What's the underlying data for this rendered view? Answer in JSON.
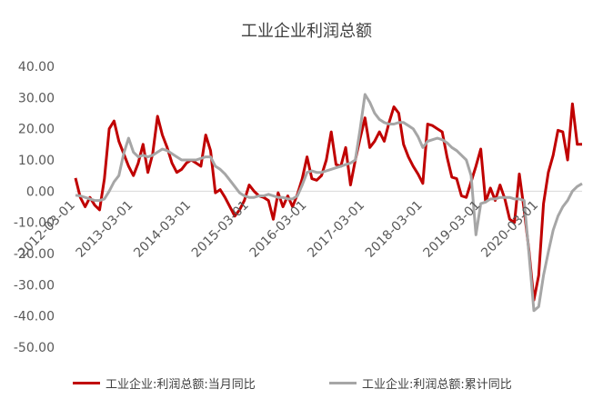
{
  "chart_data": {
    "type": "line",
    "title": "工业企业利润总额",
    "y_ticks": [
      "40.00",
      "30.00",
      "20.00",
      "10.00",
      "0.00",
      "-10.00",
      "-20.00",
      "-30.00",
      "-40.00",
      "-50.00"
    ],
    "ylim": [
      -50,
      40
    ],
    "x_ticks": [
      "2012-03-01",
      "2013-03-01",
      "2014-03-01",
      "2015-03-01",
      "2016-03-01",
      "2017-03-01",
      "2018-03-01",
      "2019-03-01",
      "2020-03-01"
    ],
    "x_start": "2012-03",
    "x_end": "2020-12",
    "legend_position": "bottom",
    "grid": false,
    "series": [
      {
        "name": "工业企业:利润总额:当月同比",
        "color": "#C00000",
        "values": [
          4.2,
          -2.0,
          -5.0,
          -2.0,
          -4.5,
          -6.0,
          4.0,
          20.0,
          22.5,
          16.0,
          12.0,
          8.0,
          5.0,
          9.0,
          15.0,
          6.0,
          12.0,
          24.0,
          18.0,
          14.0,
          9.0,
          6.0,
          7.0,
          9.0,
          10.0,
          9.0,
          8.0,
          18.0,
          13.0,
          -0.5,
          0.5,
          -2.0,
          -5.0,
          -8.0,
          -6.0,
          -3.0,
          2.0,
          0.0,
          -1.5,
          -2.0,
          -3.0,
          -9.0,
          -0.5,
          -5.0,
          -1.5,
          -5.0,
          -1.0,
          4.0,
          11.0,
          4.0,
          3.5,
          5.0,
          10.0,
          19.0,
          8.5,
          8.0,
          14.0,
          2.0,
          10.0,
          17.0,
          23.5,
          14.0,
          16.0,
          19.0,
          16.0,
          22.0,
          27.0,
          25.0,
          15.0,
          11.0,
          8.0,
          5.5,
          2.5,
          21.5,
          21.0,
          20.0,
          19.0,
          11.0,
          4.5,
          4.0,
          -1.5,
          -2.0,
          3.0,
          8.0,
          13.5,
          -3.5,
          1.0,
          -3.0,
          2.0,
          -2.5,
          -9.0,
          -10.0,
          5.5,
          -6.0,
          -19.0,
          -34.9,
          -27.0,
          -4.0,
          6.0,
          11.5,
          19.5,
          19.0,
          10.0,
          28.0,
          15.0,
          15.0
        ]
      },
      {
        "name": "工业企业:利润总额:累计同比",
        "color": "#A6A6A6",
        "values": [
          -1.3,
          -1.5,
          -2.0,
          -2.5,
          -3.0,
          -3.0,
          -2.5,
          0.0,
          3.0,
          5.0,
          12.0,
          17.0,
          12.5,
          11.0,
          11.5,
          11.0,
          11.5,
          12.5,
          13.5,
          13.0,
          12.0,
          11.0,
          10.0,
          10.0,
          10.0,
          10.0,
          10.5,
          11.0,
          11.0,
          8.0,
          7.0,
          5.5,
          3.5,
          1.5,
          -0.5,
          -1.5,
          -2.0,
          -2.0,
          -1.5,
          -1.5,
          -1.0,
          -1.5,
          -2.0,
          -2.0,
          -2.5,
          -2.5,
          -1.5,
          2.0,
          6.0,
          6.5,
          6.0,
          6.0,
          6.5,
          7.0,
          7.5,
          8.0,
          8.5,
          9.0,
          10.0,
          20.0,
          31.0,
          28.5,
          25.0,
          23.0,
          22.0,
          21.5,
          21.5,
          22.0,
          22.0,
          21.0,
          20.0,
          17.5,
          14.0,
          16.0,
          16.5,
          17.0,
          16.5,
          15.5,
          14.0,
          13.0,
          11.5,
          10.0,
          5.0,
          -14.0,
          -4.0,
          -3.5,
          -2.5,
          -2.5,
          -2.0,
          -2.0,
          -2.0,
          -2.5,
          -2.5,
          -3.0,
          -20.0,
          -38.3,
          -37.0,
          -27.0,
          -19.5,
          -12.5,
          -8.0,
          -5.0,
          -3.0,
          0.0,
          1.5,
          2.4
        ]
      }
    ]
  }
}
